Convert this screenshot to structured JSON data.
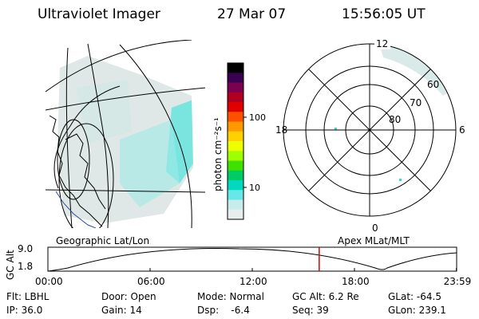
{
  "header": {
    "instrument": "Ultraviolet Imager",
    "date": "27 Mar 07",
    "time": "15:56:05 UT"
  },
  "left_panel": {
    "caption": "Geographic Lat/Lon"
  },
  "colorbar": {
    "unit_label": "photon cm⁻²s⁻¹",
    "ticks": [
      "100",
      "10"
    ],
    "colors": [
      "#000000",
      "#3a0050",
      "#7a0050",
      "#b00020",
      "#e00000",
      "#ff5000",
      "#ff9900",
      "#ffd000",
      "#f0ff00",
      "#a0ff00",
      "#40e000",
      "#00cc66",
      "#00d8c0",
      "#66e8e8",
      "#c8ecec",
      "#e8eeee"
    ]
  },
  "right_panel": {
    "caption": "Apex MLat/MLT",
    "mlt_labels": {
      "top": "12",
      "left": "18",
      "right": "6",
      "bottom": "0"
    },
    "lat_labels": [
      "60",
      "70",
      "80"
    ]
  },
  "timeline": {
    "axis_label": "GC Alt",
    "y_ticks": [
      "9.0",
      "1.8"
    ],
    "y_values": [
      1.8,
      9.0
    ],
    "x_ticks": [
      "00:00",
      "06:00",
      "12:00",
      "18:00",
      "23:59"
    ],
    "current_time_hours": 15.93,
    "marker_color": "#dd0000"
  },
  "status": {
    "row1": [
      "Flt: LBHL",
      "Door: Open",
      "Mode: Normal",
      "GC Alt: 6.2 Re",
      "GLat: -64.5"
    ],
    "row2": [
      "IP: 36.0",
      "Gain: 14",
      "Dsp:    -6.4",
      "Seq: 39",
      "GLon: 239.1"
    ]
  }
}
